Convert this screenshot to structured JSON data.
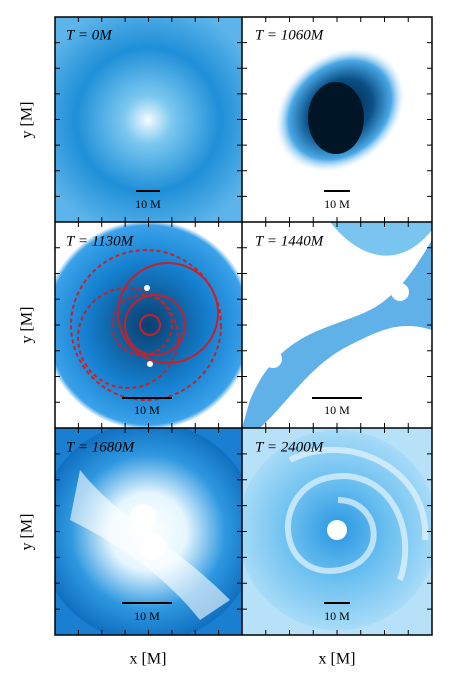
{
  "panels": [
    {
      "time_label": "T = 0M",
      "scale_label": "10 M"
    },
    {
      "time_label": "T = 1060M",
      "scale_label": "10 M"
    },
    {
      "time_label": "T = 1130M",
      "scale_label": "10 M"
    },
    {
      "time_label": "T = 1440M",
      "scale_label": "10 M"
    },
    {
      "time_label": "T = 1680M",
      "scale_label": "10 M"
    },
    {
      "time_label": "T = 2400M",
      "scale_label": "10 M"
    }
  ],
  "y_axis_labels": [
    "y [M]",
    "y [M]",
    "y [M]"
  ],
  "x_axis_labels": [
    "x [M]",
    "x [M]"
  ]
}
